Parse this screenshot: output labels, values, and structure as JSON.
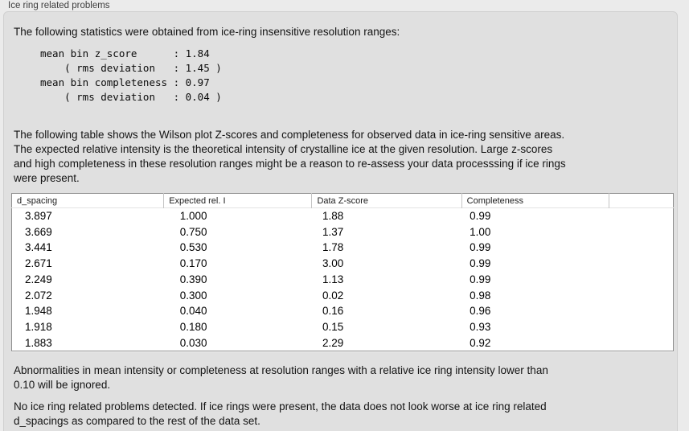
{
  "panel": {
    "title": "Ice ring related problems",
    "intro": "The following statistics were obtained from ice-ring insensitive resolution ranges:",
    "stats_block": "mean bin z_score      : 1.84\n    ( rms deviation   : 1.45 )\nmean bin completeness : 0.97\n    ( rms deviation   : 0.04 )",
    "table_description": "The following table shows the Wilson plot Z-scores and completeness for observed data in ice-ring sensitive areas.\nThe expected relative intensity is the theoretical intensity of crystalline ice at the given resolution. Large z-scores\nand high completeness in these resolution ranges might be a reason to re-assess your data processsing if ice rings\nwere present.",
    "note_ignore": "Abnormalities in mean intensity or completeness at resolution ranges with a relative ice ring intensity lower than\n0.10 will be ignored.",
    "conclusion": "No ice ring related problems detected. If ice rings were present, the data does not look worse at ice ring related\nd_spacings as compared to the rest of the data set."
  },
  "table": {
    "columns": [
      "d_spacing",
      "Expected rel. I",
      "Data Z-score",
      "Completeness",
      ""
    ],
    "rows": [
      [
        "3.897",
        "1.000",
        "1.88",
        "0.99"
      ],
      [
        "3.669",
        "0.750",
        "1.37",
        "1.00"
      ],
      [
        "3.441",
        "0.530",
        "1.78",
        "0.99"
      ],
      [
        "2.671",
        "0.170",
        "3.00",
        "0.99"
      ],
      [
        "2.249",
        "0.390",
        "1.13",
        "0.99"
      ],
      [
        "2.072",
        "0.300",
        "0.02",
        "0.98"
      ],
      [
        "1.948",
        "0.040",
        "0.16",
        "0.96"
      ],
      [
        "1.918",
        "0.180",
        "0.15",
        "0.93"
      ],
      [
        "1.883",
        "0.030",
        "2.29",
        "0.92"
      ]
    ]
  },
  "colors": {
    "window_background": "#ebebeb",
    "panel_background": "#e0e0e0",
    "panel_border": "#d0d0d0",
    "table_background": "#ffffff",
    "table_border": "#8e8e8e",
    "header_divider": "#c4c4c4",
    "text": "#141414"
  }
}
